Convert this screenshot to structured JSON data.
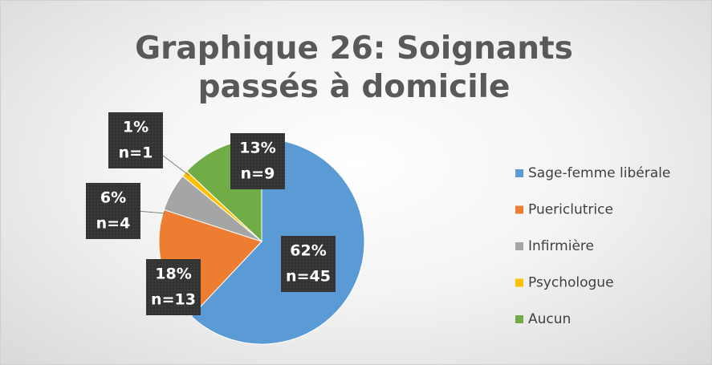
{
  "chart_data": {
    "type": "pie",
    "title": "Graphique 26: Soignants passés à domicile",
    "categories": [
      "Sage-femme libérale",
      "Puericlutrice",
      "Infirmière",
      "Psychologue",
      "Aucun"
    ],
    "values": [
      62,
      18,
      6,
      1,
      13
    ],
    "value_labels": [
      "62%",
      "18%",
      "6%",
      "1%",
      "13%"
    ],
    "counts": [
      45,
      13,
      4,
      1,
      9
    ],
    "count_labels": [
      "n=45",
      "n=13",
      "n=4",
      "n=1",
      "n=9"
    ],
    "colors": [
      "#5b9bd5",
      "#ed7d31",
      "#a5a5a5",
      "#ffc000",
      "#70ad47"
    ],
    "legend": "right"
  }
}
